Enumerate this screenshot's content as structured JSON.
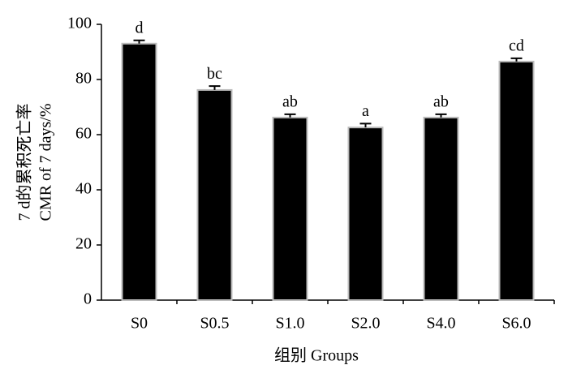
{
  "chart_data": {
    "type": "bar",
    "y_label_lines": [
      "7 d的累积死亡率",
      "CMR of 7 days/%"
    ],
    "x_label": "组别  Groups",
    "categories": [
      "S0",
      "S0.5",
      "S1.0",
      "S2.0",
      "S4.0",
      "S6.0"
    ],
    "values": [
      93,
      76.2,
      66.2,
      62.6,
      66.2,
      86.5
    ],
    "errors": [
      1.2,
      1.4,
      1.2,
      1.4,
      1.2,
      1.2
    ],
    "annotations": [
      "d",
      "bc",
      "ab",
      "a",
      "ab",
      "cd"
    ],
    "color": "#000000",
    "ylim": [
      0,
      100
    ],
    "yticks": [
      0,
      20,
      40,
      60,
      80,
      100
    ],
    "grid": false
  }
}
